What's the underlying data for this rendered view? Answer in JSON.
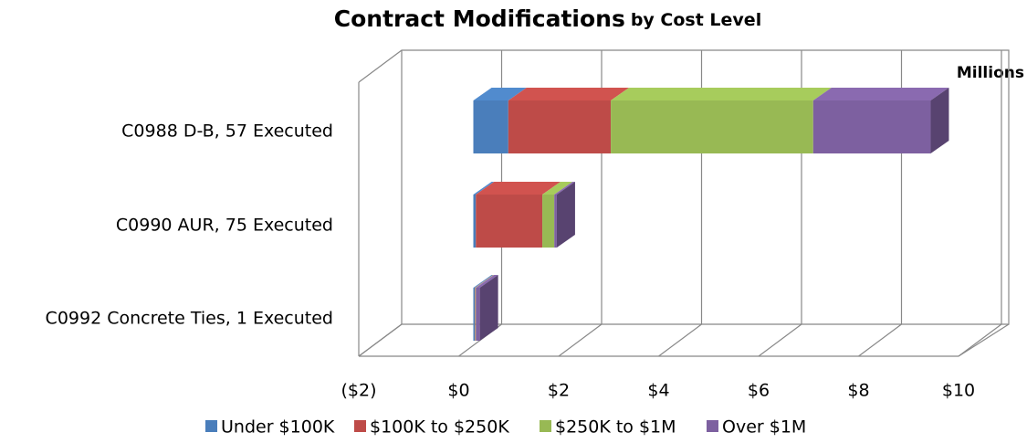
{
  "chart_data": {
    "type": "bar3d_stacked_horizontal",
    "title": "Contract Modifications",
    "subtitle": "by Cost Level",
    "annotation": "Millions",
    "categories": [
      "C0988 D-B, 57 Executed",
      "C0990 AUR, 75 Executed",
      "C0992  Concrete Ties, 1 Executed"
    ],
    "series": [
      {
        "name": "Under $100K",
        "color": "#4a7ebb",
        "values": [
          0.7,
          0.05,
          0.03
        ]
      },
      {
        "name": "$100K to $250K",
        "color": "#be4b48",
        "values": [
          2.05,
          1.33,
          0.01
        ]
      },
      {
        "name": "$250K to $1M",
        "color": "#98b954",
        "values": [
          4.05,
          0.24,
          0.01
        ]
      },
      {
        "name": "Over $1M",
        "color": "#7d60a0",
        "values": [
          2.35,
          0.05,
          0.08
        ]
      }
    ],
    "xlim": [
      -2,
      10
    ],
    "xticks": [
      {
        "value": -2,
        "label": "($2)"
      },
      {
        "value": 0,
        "label": "$0"
      },
      {
        "value": 2,
        "label": "$2"
      },
      {
        "value": 4,
        "label": "$4"
      },
      {
        "value": 6,
        "label": "$6"
      },
      {
        "value": 8,
        "label": "$8"
      },
      {
        "value": 10,
        "label": "$10"
      }
    ],
    "negative_tick_color": "#ff0000",
    "grid": true,
    "legend": "bottom"
  }
}
